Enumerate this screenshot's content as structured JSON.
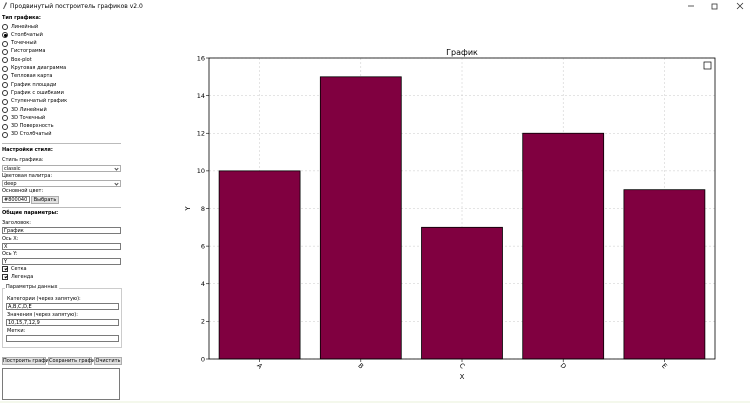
{
  "window": {
    "title": "Продвинутый построитель графиков v2.0"
  },
  "panel": {
    "chart_type": {
      "heading": "Тип графика:",
      "options": [
        "Линейный",
        "Столбчатый",
        "Точечный",
        "Гистограмма",
        "Box-plot",
        "Круговая диаграмма",
        "Тепловая карта",
        "График площади",
        "График с ошибками",
        "Ступенчатый график",
        "3D Линейный",
        "3D Точечный",
        "3D Поверхность",
        "3D Столбчатый"
      ],
      "selected": 1
    },
    "style": {
      "heading": "Настройки стиля:",
      "style_label": "Стиль графика:",
      "style_value": "classic",
      "palette_label": "Цветовая палитра:",
      "palette_value": "deep",
      "color_label": "Основной цвет:",
      "color_value": "#800040",
      "pick_button": "Выбрать"
    },
    "general": {
      "heading": "Общие параметры:",
      "title_label": "Заголовок:",
      "title_value": "График",
      "x_label": "Ось X:",
      "x_value": "X",
      "y_label": "Ось Y:",
      "y_value": "Y",
      "checks": [
        {
          "label": "Сетка",
          "checked": true
        },
        {
          "label": "Легенда",
          "checked": true
        }
      ]
    },
    "data": {
      "heading": "Параметры данных",
      "categories_label": "Категории (через запятую):",
      "categories_value": "A,B,C,D,E",
      "values_label": "Значения (через запятую):",
      "values_value": "10,15,7,12,9",
      "labels_label": "Метки:"
    },
    "buttons": [
      "Построить график",
      "Сохранить график",
      "Очистить"
    ]
  },
  "chart_data": {
    "type": "bar",
    "title": "График",
    "categories": [
      "A",
      "B",
      "C",
      "D",
      "E"
    ],
    "values": [
      10,
      15,
      7,
      12,
      9
    ],
    "color": "#800040",
    "ylim": [
      0,
      16
    ],
    "yticks": [
      0,
      2,
      4,
      6,
      8,
      10,
      12,
      14,
      16
    ],
    "xlabel": "X",
    "ylabel": "Y",
    "grid": true,
    "legend": "upper right"
  }
}
